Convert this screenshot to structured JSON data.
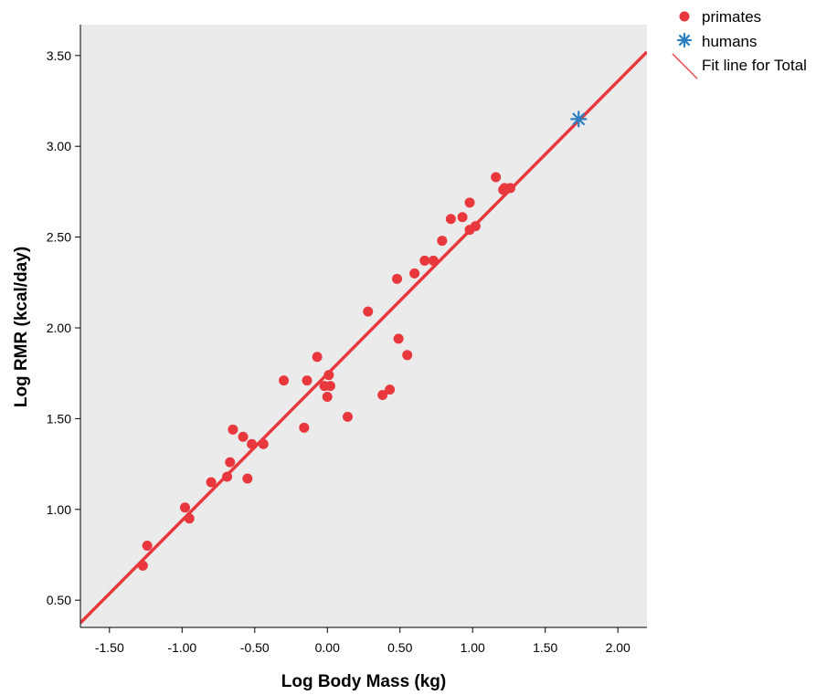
{
  "chart_data": {
    "type": "scatter",
    "xlabel": "Log Body Mass (kg)",
    "ylabel": "Log RMR (kcal/day)",
    "xlim": [
      -1.7,
      2.2
    ],
    "ylim": [
      0.35,
      3.67
    ],
    "x_ticks": [
      -1.5,
      -1.0,
      -0.5,
      0.0,
      0.5,
      1.0,
      1.5,
      2.0
    ],
    "x_tick_labels": [
      "-1.50",
      "-1.00",
      "-0.50",
      "0.00",
      "0.50",
      "1.00",
      "1.50",
      "2.00"
    ],
    "y_ticks": [
      0.5,
      1.0,
      1.5,
      2.0,
      2.5,
      3.0,
      3.5
    ],
    "y_tick_labels": [
      "0.50",
      "1.00",
      "1.50",
      "2.00",
      "2.50",
      "3.00",
      "3.50"
    ],
    "grid": false,
    "legend_position": "outside-top-right",
    "plot_background": "#ebebeb",
    "series": [
      {
        "name": "primates",
        "marker": "circle",
        "color": "#e8383d",
        "points": [
          [
            -1.27,
            0.69
          ],
          [
            -1.24,
            0.8
          ],
          [
            -0.98,
            1.01
          ],
          [
            -0.95,
            0.95
          ],
          [
            -0.8,
            1.15
          ],
          [
            -0.69,
            1.18
          ],
          [
            -0.67,
            1.26
          ],
          [
            -0.65,
            1.44
          ],
          [
            -0.58,
            1.4
          ],
          [
            -0.55,
            1.17
          ],
          [
            -0.52,
            1.36
          ],
          [
            -0.44,
            1.36
          ],
          [
            -0.3,
            1.71
          ],
          [
            -0.16,
            1.45
          ],
          [
            -0.14,
            1.71
          ],
          [
            -0.07,
            1.84
          ],
          [
            -0.02,
            1.68
          ],
          [
            0.0,
            1.62
          ],
          [
            0.01,
            1.74
          ],
          [
            0.02,
            1.68
          ],
          [
            0.14,
            1.51
          ],
          [
            0.28,
            2.09
          ],
          [
            0.38,
            1.63
          ],
          [
            0.43,
            1.66
          ],
          [
            0.48,
            2.27
          ],
          [
            0.49,
            1.94
          ],
          [
            0.55,
            1.85
          ],
          [
            0.6,
            2.3
          ],
          [
            0.67,
            2.37
          ],
          [
            0.73,
            2.37
          ],
          [
            0.79,
            2.48
          ],
          [
            0.85,
            2.6
          ],
          [
            0.93,
            2.61
          ],
          [
            0.98,
            2.54
          ],
          [
            0.98,
            2.69
          ],
          [
            1.02,
            2.56
          ],
          [
            1.16,
            2.83
          ],
          [
            1.21,
            2.76
          ],
          [
            1.22,
            2.77
          ],
          [
            1.26,
            2.77
          ]
        ]
      },
      {
        "name": "humans",
        "marker": "star",
        "color": "#2a7fc0",
        "points": [
          [
            1.73,
            3.15
          ]
        ]
      }
    ],
    "fit_line": {
      "name": "Fit line for Total",
      "color": "#e8383d",
      "x": [
        -1.7,
        2.2
      ],
      "y": [
        0.375,
        3.52
      ]
    }
  }
}
